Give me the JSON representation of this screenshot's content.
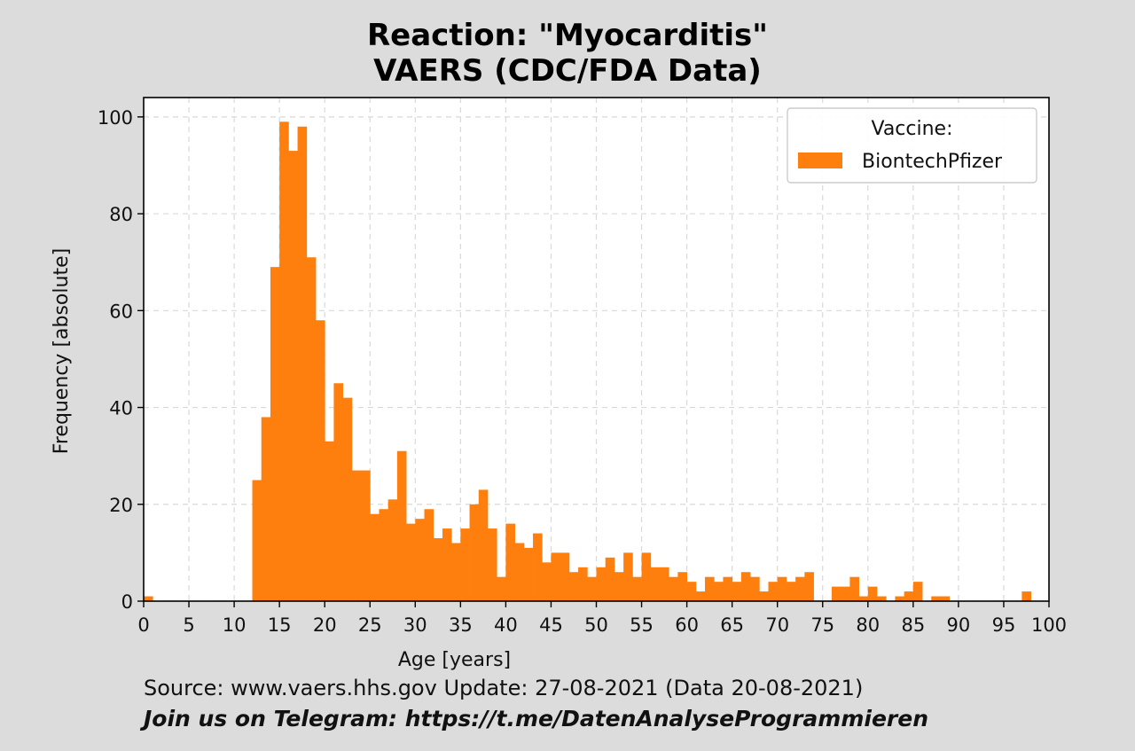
{
  "title_line1": "Reaction: \"Myocarditis\"",
  "title_line2": "VAERS (CDC/FDA Data)",
  "source_text": "Source: www.vaers.hhs.gov  Update: 27-08-2021 (Data 20-08-2021)",
  "telegram_text": "Join us on Telegram: https://t.me/DatenAnalyseProgrammieren",
  "chart_data": {
    "type": "bar",
    "title": "Reaction: \"Myocarditis\" VAERS (CDC/FDA Data)",
    "xlabel": "Age [years]",
    "ylabel": "Frequency [absolute]",
    "xlim": [
      0,
      100
    ],
    "ylim": [
      0,
      104
    ],
    "xticks": [
      0,
      5,
      10,
      15,
      20,
      25,
      30,
      35,
      40,
      45,
      50,
      55,
      60,
      65,
      70,
      75,
      80,
      85,
      90,
      95,
      100
    ],
    "yticks": [
      0,
      20,
      40,
      60,
      80,
      100
    ],
    "grid": true,
    "legend": {
      "title": "Vaccine:",
      "placement": "top-right"
    },
    "color": "#ff7f0e",
    "series": [
      {
        "name": "BiontechPfizer",
        "values": [
          1,
          0,
          0,
          0,
          0,
          0,
          0,
          0,
          0,
          0,
          0,
          0,
          25,
          38,
          69,
          99,
          93,
          98,
          71,
          58,
          33,
          45,
          42,
          27,
          27,
          18,
          19,
          21,
          31,
          16,
          17,
          19,
          13,
          15,
          12,
          15,
          20,
          23,
          15,
          5,
          16,
          12,
          11,
          14,
          8,
          10,
          10,
          6,
          7,
          5,
          7,
          9,
          6,
          10,
          5,
          10,
          7,
          7,
          5,
          6,
          4,
          2,
          5,
          4,
          5,
          4,
          6,
          5,
          2,
          4,
          5,
          4,
          5,
          6,
          0,
          0,
          3,
          3,
          5,
          1,
          3,
          1,
          0,
          1,
          2,
          4,
          0,
          1,
          1,
          0,
          0,
          0,
          0,
          0,
          0,
          0,
          0,
          2,
          0,
          0
        ]
      }
    ]
  }
}
